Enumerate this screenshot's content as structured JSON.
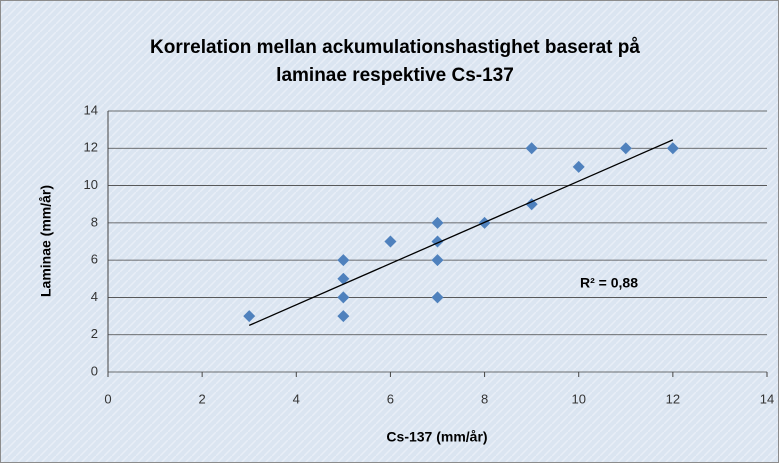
{
  "chart_data": {
    "type": "scatter",
    "title": [
      "Korrelation mellan ackumulationshastighet baserat på",
      "laminae respektive Cs-137"
    ],
    "xlabel": "Cs-137 (mm/år)",
    "ylabel": "Laminae (mm/år)",
    "annotation": "R² = 0,88",
    "series": [
      {
        "name": "Laminae",
        "color": "#4f81bd",
        "x": [
          3,
          5,
          5,
          5,
          5,
          6,
          7,
          7,
          7,
          7,
          8,
          9,
          9,
          10,
          11,
          12
        ],
        "values": [
          3,
          3,
          4,
          5,
          6,
          7,
          4,
          6,
          7,
          8,
          8,
          9,
          12,
          11,
          12,
          12
        ]
      }
    ],
    "trendline": {
      "x": [
        3,
        12
      ],
      "values": [
        2.5,
        12.45
      ],
      "color": "#000000"
    },
    "xlim": [
      0,
      14
    ],
    "xticks": [
      0,
      2,
      4,
      6,
      8,
      10,
      12,
      14
    ],
    "ylim": [
      0,
      14
    ],
    "yticks": [
      0,
      2,
      4,
      6,
      8,
      10,
      12,
      14
    ],
    "grid": true
  }
}
